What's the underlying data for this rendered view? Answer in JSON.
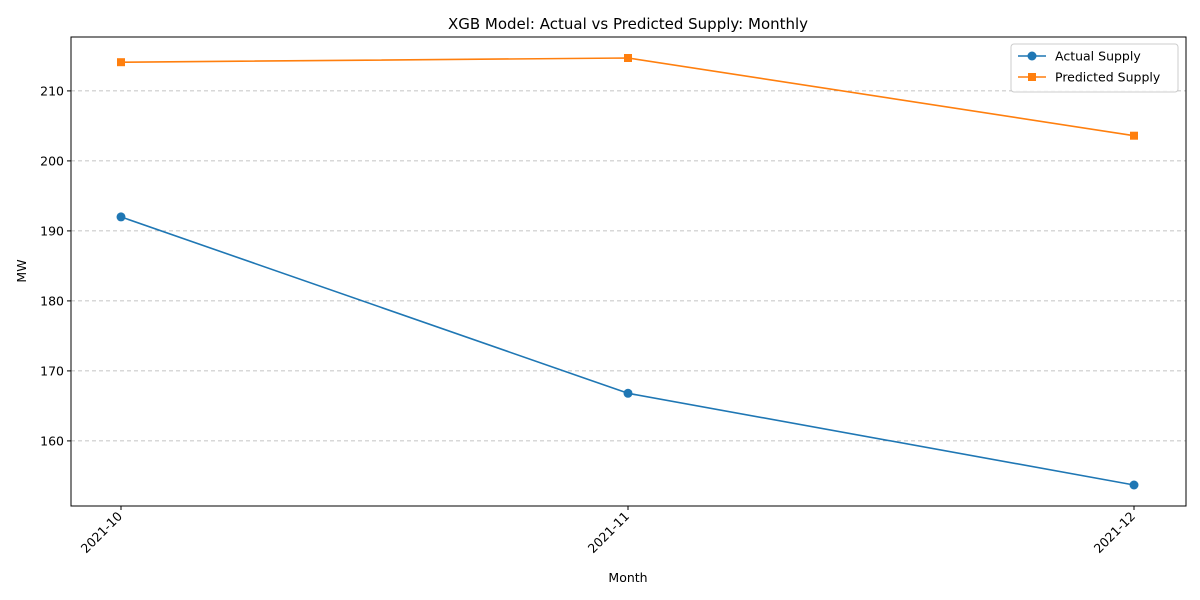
{
  "chart_data": {
    "type": "line",
    "title": "XGB Model: Actual vs Predicted Supply: Monthly",
    "xlabel": "Month",
    "ylabel": "MW",
    "categories": [
      "2021-10",
      "2021-11",
      "2021-12"
    ],
    "series": [
      {
        "name": "Actual Supply",
        "values": [
          192.0,
          166.8,
          153.7
        ],
        "color": "#1f77b4",
        "marker": "circle"
      },
      {
        "name": "Predicted Supply",
        "values": [
          214.1,
          214.7,
          203.6
        ],
        "color": "#ff7f0e",
        "marker": "square"
      }
    ],
    "yticks": [
      160,
      170,
      180,
      190,
      200,
      210
    ],
    "ylim": [
      150.7,
      217.7
    ],
    "grid": "y-dashed",
    "legend": "top-right"
  }
}
